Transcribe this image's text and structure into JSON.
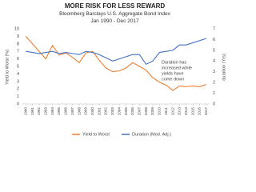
{
  "chart_data": {
    "type": "line",
    "title": "MORE RISK FOR LESS REWARD",
    "subtitle": "Bloomberg Barclays U.S. Aggregate Bond Index",
    "date_range": "Jan 1990 - Dec 2017",
    "y_label": "Yield to Worst (%)",
    "y2_label": "duration (Yrs)",
    "annotation": [
      "Duration has",
      "increased while",
      "yields have",
      "come down"
    ],
    "x": [
      1990,
      1991,
      1992,
      1993,
      1994,
      1995,
      1996,
      1997,
      1998,
      1999,
      2000,
      2001,
      2002,
      2003,
      2004,
      2005,
      2006,
      2007,
      2008,
      2009,
      2010,
      2011,
      2012,
      2013,
      2014,
      2015,
      2016,
      2017
    ],
    "xlim": [
      1989.5,
      2017.5
    ],
    "xticks": [
      1990,
      1991,
      1992,
      1993,
      1994,
      1995,
      1996,
      1997,
      1998,
      1999,
      2000,
      2001,
      2002,
      2003,
      2004,
      2005,
      2006,
      2007,
      2008,
      2009,
      2010,
      2011,
      2012,
      2013,
      2014,
      2015,
      2016,
      2017
    ],
    "ylim": [
      0,
      10
    ],
    "yticks": [
      0,
      1,
      2,
      3,
      4,
      5,
      6,
      7,
      8,
      9,
      10
    ],
    "y2lim": [
      0,
      7
    ],
    "y2ticks": [
      0,
      1,
      2,
      3,
      4,
      5,
      6,
      7
    ],
    "grid": false,
    "legend": "bottom",
    "series": [
      {
        "name": "Yield to Worst",
        "color": "#ed7d31",
        "values": [
          9.0,
          8.0,
          7.0,
          6.0,
          7.8,
          6.5,
          6.8,
          6.2,
          5.5,
          6.8,
          7.0,
          5.8,
          4.8,
          4.3,
          4.4,
          4.8,
          5.5,
          5.0,
          4.5,
          3.5,
          2.9,
          2.5,
          1.8,
          2.4,
          2.3,
          2.4,
          2.3,
          2.6
        ]
      },
      {
        "name": "Duration (Mod. Adj.)",
        "color": "#4472c4",
        "axis": "y2",
        "values": [
          4.9,
          4.8,
          4.7,
          4.8,
          4.9,
          4.7,
          4.8,
          4.7,
          4.6,
          4.9,
          4.8,
          4.6,
          4.3,
          4.0,
          4.2,
          4.4,
          4.6,
          4.6,
          3.7,
          4.0,
          4.8,
          4.9,
          5.0,
          5.5,
          5.5,
          5.7,
          5.9,
          6.1
        ]
      }
    ]
  }
}
